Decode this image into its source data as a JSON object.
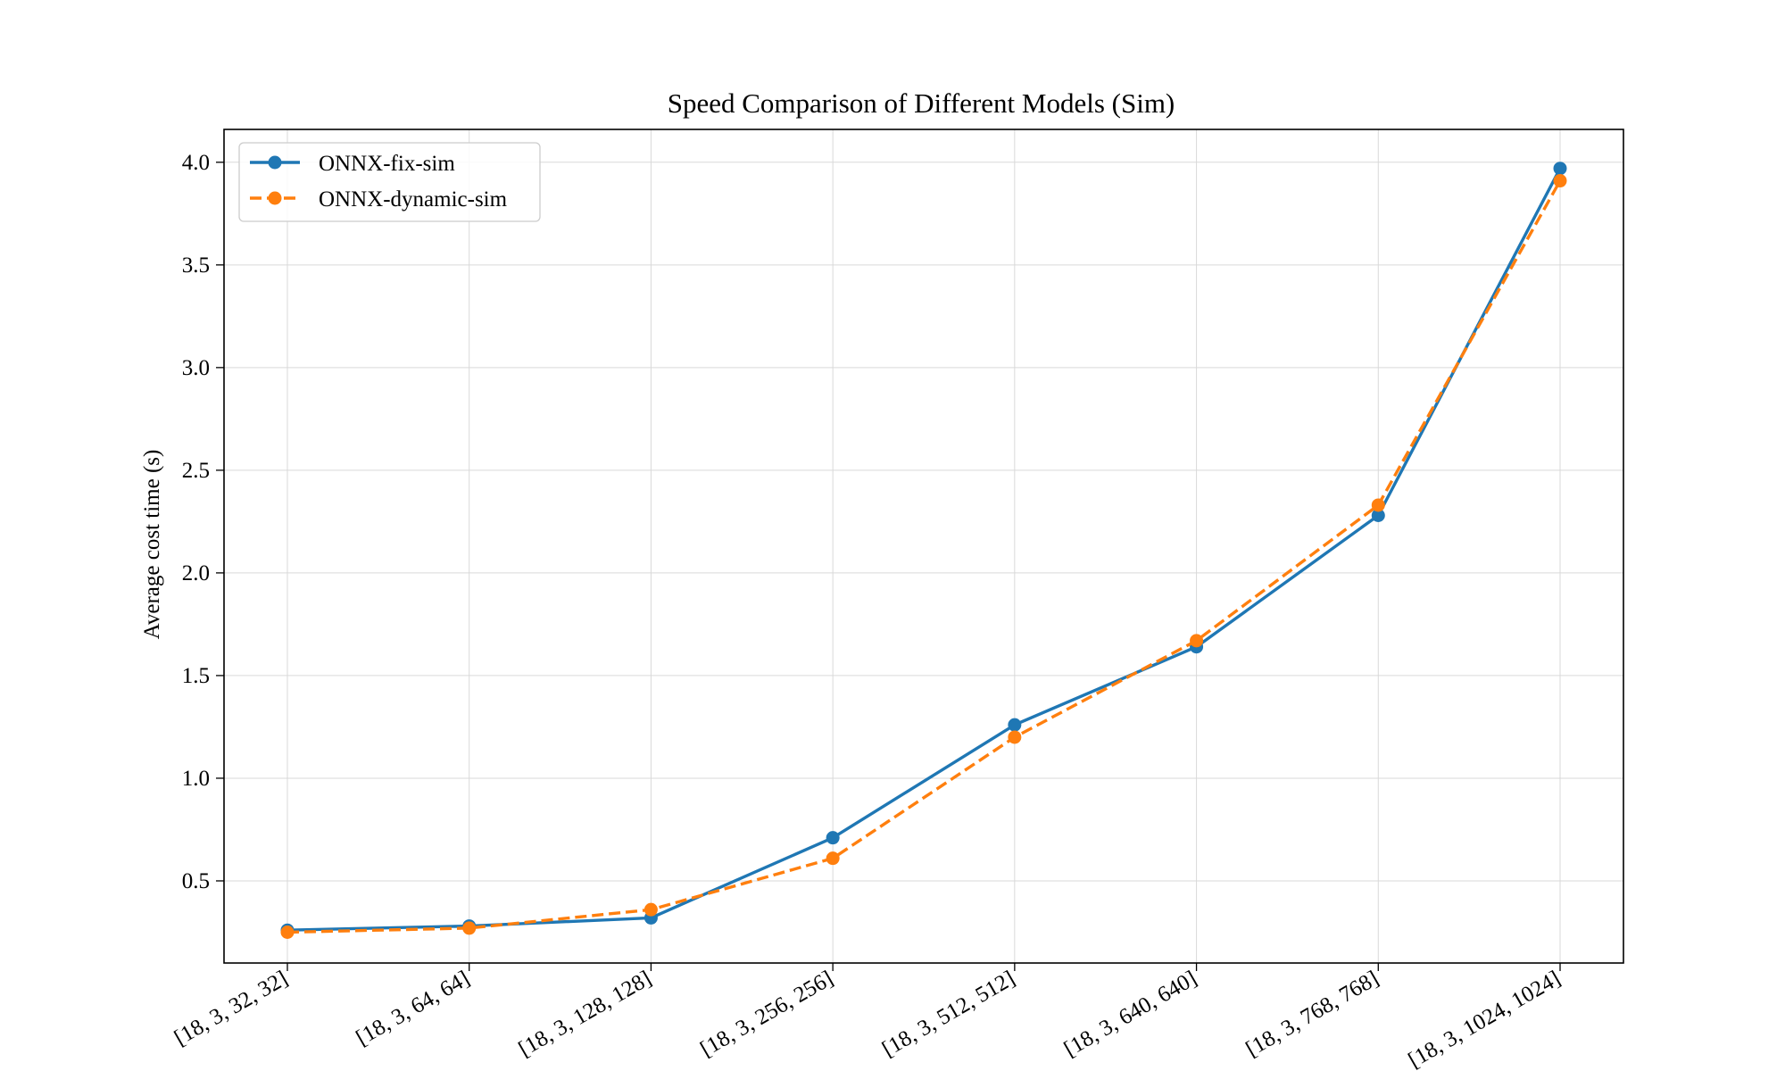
{
  "chart_data": {
    "type": "line",
    "title": "Speed Comparison of Different Models (Sim)",
    "xlabel": "",
    "ylabel": "Average cost time (s)",
    "categories": [
      "[18, 3, 32, 32]",
      "[18, 3, 64, 64]",
      "[18, 3, 128, 128]",
      "[18, 3, 256, 256]",
      "[18, 3, 512, 512]",
      "[18, 3, 640, 640]",
      "[18, 3, 768, 768]",
      "[18, 3, 1024, 1024]"
    ],
    "series": [
      {
        "name": "ONNX-fix-sim",
        "values": [
          0.26,
          0.28,
          0.32,
          0.71,
          1.26,
          1.64,
          2.28,
          3.97
        ],
        "color": "#1f77b4",
        "line_style": "solid",
        "marker": "circle"
      },
      {
        "name": "ONNX-dynamic-sim",
        "values": [
          0.25,
          0.27,
          0.36,
          0.61,
          1.2,
          1.67,
          2.33,
          3.91
        ],
        "color": "#ff7f0e",
        "line_style": "dashed",
        "marker": "circle"
      }
    ],
    "ylim": [
      0.1,
      4.16
    ],
    "yticks": [
      0.5,
      1.0,
      1.5,
      2.0,
      2.5,
      3.0,
      3.5,
      4.0
    ],
    "ytick_labels": [
      "0.5",
      "1.0",
      "1.5",
      "2.0",
      "2.5",
      "3.0",
      "3.5",
      "4.0"
    ],
    "grid": true,
    "legend_position": "upper-left"
  }
}
